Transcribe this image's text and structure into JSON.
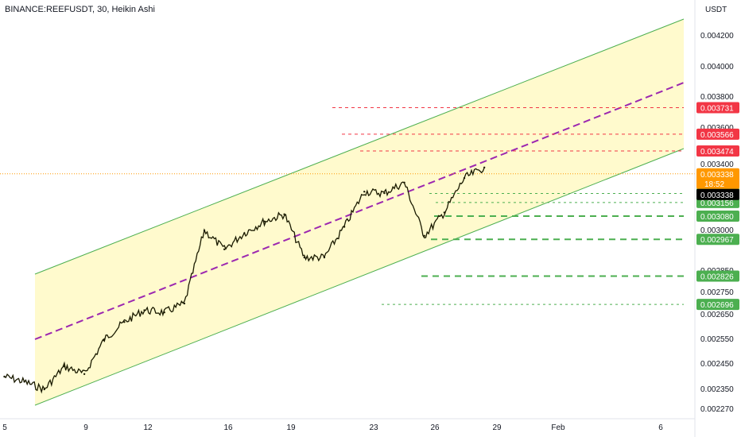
{
  "chart_data": {
    "type": "candlestick",
    "title": "BINANCE:REEFUSDT, 30, Heikin Ashi",
    "currency": "USDT",
    "y_tick_labels": [
      "0.004200",
      "0.004000",
      "0.003800",
      "0.003600",
      "0.003400",
      "0.003200",
      "0.003000",
      "0.002850",
      "0.002750",
      "0.002650",
      "0.002550",
      "0.002450",
      "0.002350",
      "0.002270"
    ],
    "x_tick_labels": [
      "5",
      "9",
      "12",
      "16",
      "19",
      "23",
      "26",
      "29",
      "Feb",
      "6"
    ],
    "current_price": {
      "value": "0.003338",
      "countdown": "18:52",
      "color": "#ff9800"
    },
    "last_price_label": "0.003338",
    "resistance_levels": [
      {
        "value": "0.003731",
        "color": "#f23645"
      },
      {
        "value": "0.003566",
        "color": "#f23645"
      },
      {
        "value": "0.003474",
        "color": "#f23645"
      }
    ],
    "support_levels": [
      {
        "value": "0.003208",
        "color": "#4caf50"
      },
      {
        "value": "0.003156",
        "color": "#4caf50"
      },
      {
        "value": "0.003080",
        "color": "#4caf50"
      },
      {
        "value": "0.002967",
        "color": "#4caf50"
      },
      {
        "value": "0.002826",
        "color": "#4caf50"
      },
      {
        "value": "0.002696",
        "color": "#4caf50"
      }
    ],
    "channel": {
      "fill": "#fff9c4",
      "edge_color": "#4caf50",
      "midline_color": "#9c27b0"
    },
    "price_series": [
      [
        "Jan 4",
        "0.00240"
      ],
      [
        "Jan 5",
        "0.00238"
      ],
      [
        "Jan 6",
        "0.00235"
      ],
      [
        "Jan 7",
        "0.00244"
      ],
      [
        "Jan 8",
        "0.00241"
      ],
      [
        "Jan 9",
        "0.00255"
      ],
      [
        "Jan 10",
        "0.00262"
      ],
      [
        "Jan 11",
        "0.00267"
      ],
      [
        "Jan 12",
        "0.00266"
      ],
      [
        "Jan 13",
        "0.00270"
      ],
      [
        "Jan 14",
        "0.00300"
      ],
      [
        "Jan 15",
        "0.00293"
      ],
      [
        "Jan 16",
        "0.00299"
      ],
      [
        "Jan 17",
        "0.00305"
      ],
      [
        "Jan 18",
        "0.00309"
      ],
      [
        "Jan 19",
        "0.00290"
      ],
      [
        "Jan 20",
        "0.00290"
      ],
      [
        "Jan 21",
        "0.00302"
      ],
      [
        "Jan 22",
        "0.00322"
      ],
      [
        "Jan 23",
        "0.00321"
      ],
      [
        "Jan 24",
        "0.00328"
      ],
      [
        "Jan 25",
        "0.00298"
      ],
      [
        "Jan 26",
        "0.00310"
      ],
      [
        "Jan 27",
        "0.00331"
      ],
      [
        "Jan 28",
        "0.00338"
      ]
    ]
  }
}
